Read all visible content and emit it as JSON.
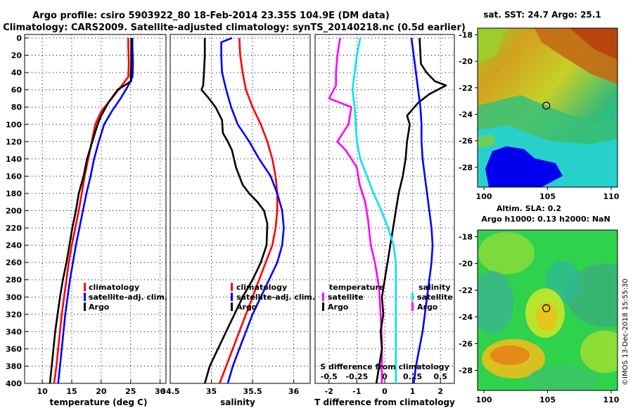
{
  "title": {
    "line1": "Argo profile: csiro 5903922_80 18-Feb-2014 23.35S 104.9E (DM data)",
    "line2": "Climatology: CARS2009. Satellite-adjusted climatology: synTS_20140218.nc (0.5d earlier)"
  },
  "credit": "©IMOS 13-Dec-2018 15:55:30",
  "colors": {
    "clim": "#ff0000",
    "sat": "#0000ff",
    "argo": "#000000",
    "tsat": "#ff00ff",
    "ssat": "#00e5ee"
  },
  "depth_ticks": [
    0,
    20,
    40,
    60,
    80,
    100,
    120,
    140,
    160,
    180,
    200,
    220,
    240,
    260,
    280,
    300,
    320,
    340,
    360,
    380,
    400
  ],
  "chart_data": [
    {
      "type": "line",
      "id": "temperature",
      "xlabel": "temperature (deg C)",
      "ylabel": "depth",
      "xlim": [
        7,
        31
      ],
      "ylim": [
        0,
        400
      ],
      "xticks": [
        10,
        15,
        20,
        25,
        30
      ],
      "grid": true,
      "legend": {
        "placement": "right",
        "entries": [
          "climatology",
          "satellite-adj. clim.",
          "Argo"
        ]
      },
      "series": [
        {
          "name": "climatology",
          "color": "#ff0000",
          "points": [
            [
              24.6,
              0
            ],
            [
              24.6,
              10
            ],
            [
              24.7,
              30
            ],
            [
              24.6,
              45
            ],
            [
              23.5,
              55
            ],
            [
              21.8,
              70
            ],
            [
              20.0,
              85
            ],
            [
              19.0,
              100
            ],
            [
              18.4,
              120
            ],
            [
              17.8,
              140
            ],
            [
              17.2,
              160
            ],
            [
              16.7,
              180
            ],
            [
              16.2,
              200
            ],
            [
              15.6,
              220
            ],
            [
              15.0,
              240
            ],
            [
              14.5,
              260
            ],
            [
              14.1,
              280
            ],
            [
              13.7,
              300
            ],
            [
              13.3,
              320
            ],
            [
              13.0,
              340
            ],
            [
              12.7,
              360
            ],
            [
              12.4,
              380
            ],
            [
              12.0,
              400
            ]
          ]
        },
        {
          "name": "satellite-adj. clim.",
          "color": "#0000ff",
          "points": [
            [
              25.3,
              0
            ],
            [
              25.3,
              10
            ],
            [
              25.4,
              30
            ],
            [
              25.3,
              45
            ],
            [
              24.6,
              55
            ],
            [
              23.3,
              70
            ],
            [
              21.8,
              85
            ],
            [
              20.5,
              100
            ],
            [
              19.6,
              120
            ],
            [
              18.8,
              140
            ],
            [
              18.2,
              160
            ],
            [
              17.5,
              180
            ],
            [
              16.9,
              200
            ],
            [
              16.3,
              220
            ],
            [
              15.7,
              240
            ],
            [
              15.2,
              260
            ],
            [
              14.7,
              280
            ],
            [
              14.3,
              300
            ],
            [
              13.9,
              320
            ],
            [
              13.6,
              340
            ],
            [
              13.3,
              360
            ],
            [
              13.0,
              380
            ],
            [
              12.7,
              400
            ]
          ]
        },
        {
          "name": "Argo",
          "color": "#000000",
          "points": [
            [
              25.1,
              0
            ],
            [
              25.1,
              10
            ],
            [
              25.1,
              30
            ],
            [
              25.0,
              45
            ],
            [
              25.1,
              50
            ],
            [
              22.8,
              60
            ],
            [
              21.2,
              75
            ],
            [
              20.0,
              90
            ],
            [
              19.4,
              100
            ],
            [
              18.5,
              120
            ],
            [
              17.6,
              140
            ],
            [
              17.0,
              160
            ],
            [
              16.2,
              180
            ],
            [
              15.7,
              200
            ],
            [
              15.1,
              220
            ],
            [
              14.6,
              240
            ],
            [
              14.1,
              260
            ],
            [
              13.5,
              280
            ],
            [
              13.0,
              300
            ],
            [
              12.6,
              320
            ],
            [
              12.2,
              340
            ],
            [
              11.9,
              360
            ],
            [
              11.6,
              380
            ],
            [
              11.3,
              400
            ]
          ]
        }
      ]
    },
    {
      "type": "line",
      "id": "salinity",
      "xlabel": "salinity",
      "ylabel": "depth",
      "xlim": [
        34.5,
        36.2
      ],
      "ylim": [
        0,
        400
      ],
      "xticks": [
        34.5,
        35,
        35.5,
        36
      ],
      "xticklabels": [
        "34.5",
        "35",
        "35.5",
        "36"
      ],
      "grid": true,
      "legend": {
        "placement": "right",
        "entries": [
          "climatology",
          "satellite-adj. clim.",
          "Argo"
        ]
      },
      "series": [
        {
          "name": "climatology",
          "color": "#ff0000",
          "points": [
            [
              35.34,
              0
            ],
            [
              35.35,
              20
            ],
            [
              35.38,
              40
            ],
            [
              35.42,
              60
            ],
            [
              35.5,
              80
            ],
            [
              35.6,
              100
            ],
            [
              35.68,
              120
            ],
            [
              35.74,
              140
            ],
            [
              35.78,
              160
            ],
            [
              35.8,
              180
            ],
            [
              35.8,
              200
            ],
            [
              35.78,
              220
            ],
            [
              35.74,
              240
            ],
            [
              35.66,
              260
            ],
            [
              35.58,
              280
            ],
            [
              35.5,
              300
            ],
            [
              35.42,
              320
            ],
            [
              35.34,
              340
            ],
            [
              35.26,
              360
            ],
            [
              35.18,
              380
            ],
            [
              35.1,
              400
            ]
          ]
        },
        {
          "name": "satellite-adj. clim.",
          "color": "#0000ff",
          "points": [
            [
              35.25,
              0
            ],
            [
              35.12,
              5
            ],
            [
              35.12,
              20
            ],
            [
              35.13,
              40
            ],
            [
              35.18,
              60
            ],
            [
              35.24,
              80
            ],
            [
              35.32,
              100
            ],
            [
              35.46,
              120
            ],
            [
              35.58,
              140
            ],
            [
              35.72,
              160
            ],
            [
              35.8,
              180
            ],
            [
              35.86,
              200
            ],
            [
              35.88,
              220
            ],
            [
              35.86,
              240
            ],
            [
              35.8,
              260
            ],
            [
              35.7,
              280
            ],
            [
              35.6,
              300
            ],
            [
              35.5,
              320
            ],
            [
              35.42,
              340
            ],
            [
              35.34,
              360
            ],
            [
              35.26,
              380
            ],
            [
              35.2,
              400
            ]
          ]
        },
        {
          "name": "Argo",
          "color": "#000000",
          "points": [
            [
              34.92,
              0
            ],
            [
              34.92,
              20
            ],
            [
              34.91,
              40
            ],
            [
              34.9,
              55
            ],
            [
              34.88,
              60
            ],
            [
              34.97,
              70
            ],
            [
              35.05,
              80
            ],
            [
              35.13,
              95
            ],
            [
              35.14,
              110
            ],
            [
              35.2,
              120
            ],
            [
              35.25,
              130
            ],
            [
              35.3,
              150
            ],
            [
              35.38,
              170
            ],
            [
              35.46,
              180
            ],
            [
              35.56,
              190
            ],
            [
              35.64,
              200
            ],
            [
              35.68,
              215
            ],
            [
              35.67,
              240
            ],
            [
              35.6,
              260
            ],
            [
              35.5,
              280
            ],
            [
              35.38,
              300
            ],
            [
              35.28,
              320
            ],
            [
              35.18,
              340
            ],
            [
              35.08,
              360
            ],
            [
              34.98,
              380
            ],
            [
              34.92,
              400
            ]
          ]
        }
      ]
    },
    {
      "type": "line",
      "id": "differences",
      "xlabel": "T difference from climatology",
      "x2label": "S difference from climatology",
      "ylabel": "depth",
      "xlim": [
        -2.5,
        2.5
      ],
      "ylim": [
        0,
        400
      ],
      "xticks": [
        -2,
        -1,
        0,
        1,
        2
      ],
      "x2ticks": [
        -0.5,
        -0.25,
        0,
        0.25,
        0.5
      ],
      "x2ticklabels": [
        "-0.5",
        "-0.25",
        "0",
        "0.25",
        "0.5"
      ],
      "grid": true,
      "legend": {
        "placement": "bottom",
        "entries": [
          "temperature",
          "satellite",
          "Argo",
          "salinity",
          "satellite",
          "Argo"
        ]
      },
      "series": [
        {
          "name": "T satellite",
          "color": "#ff00ff",
          "points": [
            [
              -1.6,
              0
            ],
            [
              -1.7,
              20
            ],
            [
              -1.75,
              40
            ],
            [
              -1.75,
              55
            ],
            [
              -2.0,
              70
            ],
            [
              -1.2,
              80
            ],
            [
              -1.3,
              100
            ],
            [
              -1.5,
              110
            ],
            [
              -1.7,
              120
            ],
            [
              -1.4,
              130
            ],
            [
              -1.0,
              150
            ],
            [
              -0.9,
              170
            ],
            [
              -0.7,
              190
            ],
            [
              -0.6,
              210
            ],
            [
              -0.5,
              240
            ],
            [
              -0.35,
              260
            ],
            [
              -0.2,
              290
            ],
            [
              -0.15,
              320
            ],
            [
              -0.1,
              350
            ],
            [
              -0.1,
              400
            ]
          ]
        },
        {
          "name": "T Argo",
          "color": "#000000",
          "points": [
            [
              1.25,
              0
            ],
            [
              1.3,
              30
            ],
            [
              1.5,
              40
            ],
            [
              1.8,
              50
            ],
            [
              2.2,
              55
            ],
            [
              1.6,
              65
            ],
            [
              1.2,
              75
            ],
            [
              0.8,
              90
            ],
            [
              0.9,
              100
            ],
            [
              0.8,
              120
            ],
            [
              0.75,
              140
            ],
            [
              0.65,
              160
            ],
            [
              0.5,
              180
            ],
            [
              0.4,
              200
            ],
            [
              0.3,
              220
            ],
            [
              0.2,
              240
            ],
            [
              0.1,
              260
            ],
            [
              0.0,
              280
            ],
            [
              -0.1,
              300
            ],
            [
              -0.05,
              320
            ],
            [
              -0.15,
              340
            ],
            [
              -0.1,
              360
            ],
            [
              -0.2,
              380
            ],
            [
              -0.3,
              400
            ]
          ]
        },
        {
          "name": "S satellite",
          "color": "#00e5ee",
          "points": [
            [
              -0.22,
              0
            ],
            [
              -0.25,
              20
            ],
            [
              -0.27,
              40
            ],
            [
              -0.29,
              60
            ],
            [
              -0.27,
              80
            ],
            [
              -0.26,
              100
            ],
            [
              -0.25,
              120
            ],
            [
              -0.22,
              140
            ],
            [
              -0.16,
              160
            ],
            [
              -0.1,
              180
            ],
            [
              -0.03,
              200
            ],
            [
              0.03,
              220
            ],
            [
              0.08,
              240
            ],
            [
              0.1,
              260
            ],
            [
              0.1,
              280
            ],
            [
              0.1,
              300
            ],
            [
              0.1,
              320
            ],
            [
              0.1,
              340
            ],
            [
              0.1,
              360
            ],
            [
              0.1,
              380
            ],
            [
              0.1,
              400
            ]
          ]
        },
        {
          "name": "S Argo",
          "color": "#0000ff",
          "points": [
            [
              0.24,
              0
            ],
            [
              0.26,
              20
            ],
            [
              0.28,
              40
            ],
            [
              0.3,
              60
            ],
            [
              0.32,
              80
            ],
            [
              0.33,
              100
            ],
            [
              0.33,
              120
            ],
            [
              0.34,
              140
            ],
            [
              0.36,
              160
            ],
            [
              0.38,
              180
            ],
            [
              0.4,
              200
            ],
            [
              0.42,
              220
            ],
            [
              0.43,
              240
            ],
            [
              0.42,
              260
            ],
            [
              0.4,
              280
            ],
            [
              0.38,
              300
            ],
            [
              0.36,
              320
            ],
            [
              0.34,
              340
            ],
            [
              0.31,
              360
            ],
            [
              0.28,
              380
            ],
            [
              0.26,
              400
            ]
          ]
        }
      ]
    },
    {
      "type": "heatmap",
      "id": "sst-map",
      "title": "sat. SST: 24.7 Argo: 25.1",
      "xlim": [
        99.5,
        110.5
      ],
      "ylim": [
        -29.5,
        -17.5
      ],
      "xticks": [
        100,
        105,
        110
      ],
      "yticks": [
        -18,
        -20,
        -22,
        -24,
        -26,
        -28
      ],
      "marker": {
        "lon": 104.9,
        "lat": -23.35
      }
    },
    {
      "type": "heatmap",
      "id": "sla-map",
      "title": "Altim. SLA: 0.2",
      "subtitle": "Argo h1000: 0.13 h2000: NaN",
      "xlim": [
        99.5,
        110.5
      ],
      "ylim": [
        -29.5,
        -17.5
      ],
      "xticks": [
        100,
        105,
        110
      ],
      "yticks": [
        -18,
        -20,
        -22,
        -24,
        -26,
        -28
      ],
      "marker": {
        "lon": 104.9,
        "lat": -23.35
      }
    }
  ]
}
